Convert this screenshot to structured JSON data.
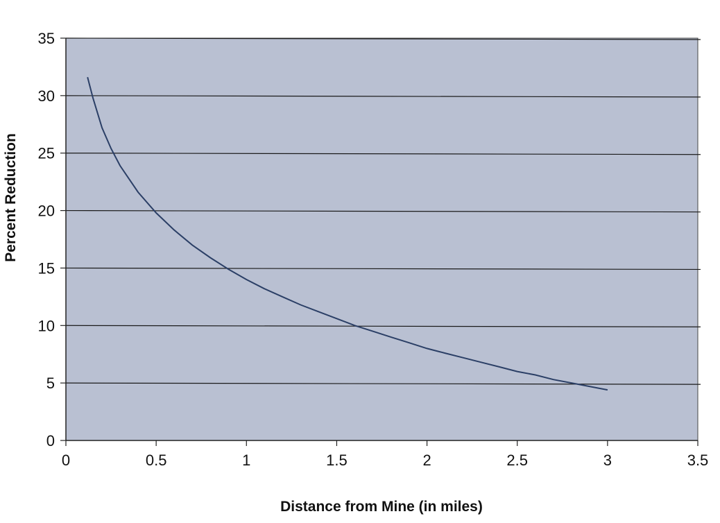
{
  "chart_data": {
    "type": "line",
    "title": "",
    "xlabel": "Distance from Mine (in miles)",
    "ylabel": "Percent Reduction",
    "xlim": [
      0,
      3.5
    ],
    "ylim": [
      0,
      35
    ],
    "x_ticks": [
      0,
      0.5,
      1,
      1.5,
      2,
      2.5,
      3,
      3.5
    ],
    "x_tick_labels": [
      "0",
      "0.5",
      "1",
      "1.5",
      "2",
      "2.5",
      "3",
      "3.5"
    ],
    "y_ticks": [
      0,
      5,
      10,
      15,
      20,
      25,
      30,
      35
    ],
    "y_tick_labels": [
      "0",
      "5",
      "10",
      "15",
      "20",
      "25",
      "30",
      "35"
    ],
    "grid": "horizontal",
    "legend": "none",
    "plot_background": "#b9c0d2",
    "line_color": "#2b3f66",
    "series": [
      {
        "x": [
          0.12,
          0.15,
          0.2,
          0.25,
          0.3,
          0.4,
          0.5,
          0.6,
          0.7,
          0.8,
          0.9,
          1.0,
          1.1,
          1.2,
          1.3,
          1.4,
          1.5,
          1.6,
          1.7,
          1.8,
          1.9,
          2.0,
          2.1,
          2.2,
          2.3,
          2.4,
          2.5,
          2.6,
          2.7,
          2.8,
          2.9,
          3.0
        ],
        "y": [
          31.6,
          29.8,
          27.2,
          25.4,
          23.9,
          21.6,
          19.8,
          18.3,
          17.0,
          15.9,
          14.9,
          14.0,
          13.2,
          12.5,
          11.8,
          11.2,
          10.6,
          10.0,
          9.5,
          9.0,
          8.5,
          8.0,
          7.6,
          7.2,
          6.8,
          6.4,
          6.0,
          5.7,
          5.3,
          5.0,
          4.7,
          4.4
        ]
      }
    ]
  }
}
